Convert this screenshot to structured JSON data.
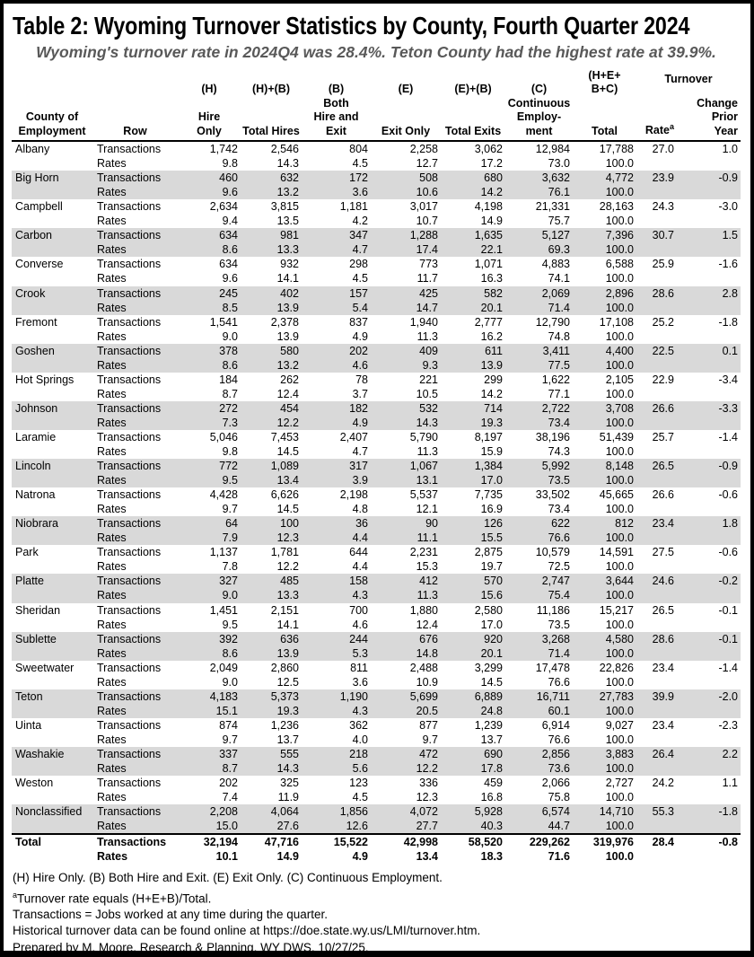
{
  "title": "Table 2: Wyoming Turnover Statistics by County, Fourth Quarter 2024",
  "subtitle": "Wyoming's turnover rate in 2024Q4 was 28.4%. Teton County had the highest rate at 39.9%.",
  "table": {
    "headers": {
      "county": "County of\nEmployment",
      "row": "Row",
      "hire_only": "(H)\n\nHire\nOnly",
      "total_hires": "(H)+(B)\n\n\nTotal Hires",
      "both_hire_exit": "(B)\nBoth\nHire and\nExit",
      "exit_only": "(E)\n\n\nExit Only",
      "total_exits": "(E)+(B)\n\n\nTotal Exits",
      "continuous": "(C)\nContinuous\nEmploy-\nment",
      "total": "(H+E+\nB+C)\n\n\nTotal",
      "turnover": "Turnover",
      "rate": "Rate",
      "rate_sup": "a",
      "change": "Change\nPrior\nYear"
    },
    "row_labels": {
      "transactions": "Transactions",
      "rates": "Rates"
    },
    "counties": [
      {
        "name": "Albany",
        "transactions": [
          "1,742",
          "2,546",
          "804",
          "2,258",
          "3,062",
          "12,984",
          "17,788"
        ],
        "rate": "27.0",
        "change": "1.0",
        "rates": [
          "9.8",
          "14.3",
          "4.5",
          "12.7",
          "17.2",
          "73.0",
          "100.0"
        ]
      },
      {
        "name": "Big Horn",
        "transactions": [
          "460",
          "632",
          "172",
          "508",
          "680",
          "3,632",
          "4,772"
        ],
        "rate": "23.9",
        "change": "-0.9",
        "rates": [
          "9.6",
          "13.2",
          "3.6",
          "10.6",
          "14.2",
          "76.1",
          "100.0"
        ]
      },
      {
        "name": "Campbell",
        "transactions": [
          "2,634",
          "3,815",
          "1,181",
          "3,017",
          "4,198",
          "21,331",
          "28,163"
        ],
        "rate": "24.3",
        "change": "-3.0",
        "rates": [
          "9.4",
          "13.5",
          "4.2",
          "10.7",
          "14.9",
          "75.7",
          "100.0"
        ]
      },
      {
        "name": "Carbon",
        "transactions": [
          "634",
          "981",
          "347",
          "1,288",
          "1,635",
          "5,127",
          "7,396"
        ],
        "rate": "30.7",
        "change": "1.5",
        "rates": [
          "8.6",
          "13.3",
          "4.7",
          "17.4",
          "22.1",
          "69.3",
          "100.0"
        ]
      },
      {
        "name": "Converse",
        "transactions": [
          "634",
          "932",
          "298",
          "773",
          "1,071",
          "4,883",
          "6,588"
        ],
        "rate": "25.9",
        "change": "-1.6",
        "rates": [
          "9.6",
          "14.1",
          "4.5",
          "11.7",
          "16.3",
          "74.1",
          "100.0"
        ]
      },
      {
        "name": "Crook",
        "transactions": [
          "245",
          "402",
          "157",
          "425",
          "582",
          "2,069",
          "2,896"
        ],
        "rate": "28.6",
        "change": "2.8",
        "rates": [
          "8.5",
          "13.9",
          "5.4",
          "14.7",
          "20.1",
          "71.4",
          "100.0"
        ]
      },
      {
        "name": "Fremont",
        "transactions": [
          "1,541",
          "2,378",
          "837",
          "1,940",
          "2,777",
          "12,790",
          "17,108"
        ],
        "rate": "25.2",
        "change": "-1.8",
        "rates": [
          "9.0",
          "13.9",
          "4.9",
          "11.3",
          "16.2",
          "74.8",
          "100.0"
        ]
      },
      {
        "name": "Goshen",
        "transactions": [
          "378",
          "580",
          "202",
          "409",
          "611",
          "3,411",
          "4,400"
        ],
        "rate": "22.5",
        "change": "0.1",
        "rates": [
          "8.6",
          "13.2",
          "4.6",
          "9.3",
          "13.9",
          "77.5",
          "100.0"
        ]
      },
      {
        "name": "Hot Springs",
        "transactions": [
          "184",
          "262",
          "78",
          "221",
          "299",
          "1,622",
          "2,105"
        ],
        "rate": "22.9",
        "change": "-3.4",
        "rates": [
          "8.7",
          "12.4",
          "3.7",
          "10.5",
          "14.2",
          "77.1",
          "100.0"
        ]
      },
      {
        "name": "Johnson",
        "transactions": [
          "272",
          "454",
          "182",
          "532",
          "714",
          "2,722",
          "3,708"
        ],
        "rate": "26.6",
        "change": "-3.3",
        "rates": [
          "7.3",
          "12.2",
          "4.9",
          "14.3",
          "19.3",
          "73.4",
          "100.0"
        ]
      },
      {
        "name": "Laramie",
        "transactions": [
          "5,046",
          "7,453",
          "2,407",
          "5,790",
          "8,197",
          "38,196",
          "51,439"
        ],
        "rate": "25.7",
        "change": "-1.4",
        "rates": [
          "9.8",
          "14.5",
          "4.7",
          "11.3",
          "15.9",
          "74.3",
          "100.0"
        ]
      },
      {
        "name": "Lincoln",
        "transactions": [
          "772",
          "1,089",
          "317",
          "1,067",
          "1,384",
          "5,992",
          "8,148"
        ],
        "rate": "26.5",
        "change": "-0.9",
        "rates": [
          "9.5",
          "13.4",
          "3.9",
          "13.1",
          "17.0",
          "73.5",
          "100.0"
        ]
      },
      {
        "name": "Natrona",
        "transactions": [
          "4,428",
          "6,626",
          "2,198",
          "5,537",
          "7,735",
          "33,502",
          "45,665"
        ],
        "rate": "26.6",
        "change": "-0.6",
        "rates": [
          "9.7",
          "14.5",
          "4.8",
          "12.1",
          "16.9",
          "73.4",
          "100.0"
        ]
      },
      {
        "name": "Niobrara",
        "transactions": [
          "64",
          "100",
          "36",
          "90",
          "126",
          "622",
          "812"
        ],
        "rate": "23.4",
        "change": "1.8",
        "rates": [
          "7.9",
          "12.3",
          "4.4",
          "11.1",
          "15.5",
          "76.6",
          "100.0"
        ]
      },
      {
        "name": "Park",
        "transactions": [
          "1,137",
          "1,781",
          "644",
          "2,231",
          "2,875",
          "10,579",
          "14,591"
        ],
        "rate": "27.5",
        "change": "-0.6",
        "rates": [
          "7.8",
          "12.2",
          "4.4",
          "15.3",
          "19.7",
          "72.5",
          "100.0"
        ]
      },
      {
        "name": "Platte",
        "transactions": [
          "327",
          "485",
          "158",
          "412",
          "570",
          "2,747",
          "3,644"
        ],
        "rate": "24.6",
        "change": "-0.2",
        "rates": [
          "9.0",
          "13.3",
          "4.3",
          "11.3",
          "15.6",
          "75.4",
          "100.0"
        ]
      },
      {
        "name": "Sheridan",
        "transactions": [
          "1,451",
          "2,151",
          "700",
          "1,880",
          "2,580",
          "11,186",
          "15,217"
        ],
        "rate": "26.5",
        "change": "-0.1",
        "rates": [
          "9.5",
          "14.1",
          "4.6",
          "12.4",
          "17.0",
          "73.5",
          "100.0"
        ]
      },
      {
        "name": "Sublette",
        "transactions": [
          "392",
          "636",
          "244",
          "676",
          "920",
          "3,268",
          "4,580"
        ],
        "rate": "28.6",
        "change": "-0.1",
        "rates": [
          "8.6",
          "13.9",
          "5.3",
          "14.8",
          "20.1",
          "71.4",
          "100.0"
        ]
      },
      {
        "name": "Sweetwater",
        "transactions": [
          "2,049",
          "2,860",
          "811",
          "2,488",
          "3,299",
          "17,478",
          "22,826"
        ],
        "rate": "23.4",
        "change": "-1.4",
        "rates": [
          "9.0",
          "12.5",
          "3.6",
          "10.9",
          "14.5",
          "76.6",
          "100.0"
        ]
      },
      {
        "name": "Teton",
        "transactions": [
          "4,183",
          "5,373",
          "1,190",
          "5,699",
          "6,889",
          "16,711",
          "27,783"
        ],
        "rate": "39.9",
        "change": "-2.0",
        "rates": [
          "15.1",
          "19.3",
          "4.3",
          "20.5",
          "24.8",
          "60.1",
          "100.0"
        ]
      },
      {
        "name": "Uinta",
        "transactions": [
          "874",
          "1,236",
          "362",
          "877",
          "1,239",
          "6,914",
          "9,027"
        ],
        "rate": "23.4",
        "change": "-2.3",
        "rates": [
          "9.7",
          "13.7",
          "4.0",
          "9.7",
          "13.7",
          "76.6",
          "100.0"
        ]
      },
      {
        "name": "Washakie",
        "transactions": [
          "337",
          "555",
          "218",
          "472",
          "690",
          "2,856",
          "3,883"
        ],
        "rate": "26.4",
        "change": "2.2",
        "rates": [
          "8.7",
          "14.3",
          "5.6",
          "12.2",
          "17.8",
          "73.6",
          "100.0"
        ]
      },
      {
        "name": "Weston",
        "transactions": [
          "202",
          "325",
          "123",
          "336",
          "459",
          "2,066",
          "2,727"
        ],
        "rate": "24.2",
        "change": "1.1",
        "rates": [
          "7.4",
          "11.9",
          "4.5",
          "12.3",
          "16.8",
          "75.8",
          "100.0"
        ]
      },
      {
        "name": "Nonclassified",
        "transactions": [
          "2,208",
          "4,064",
          "1,856",
          "4,072",
          "5,928",
          "6,574",
          "14,710"
        ],
        "rate": "55.3",
        "change": "-1.8",
        "rates": [
          "15.0",
          "27.6",
          "12.6",
          "27.7",
          "40.3",
          "44.7",
          "100.0"
        ]
      }
    ],
    "total_row": {
      "name": "Total",
      "transactions": [
        "32,194",
        "47,716",
        "15,522",
        "42,998",
        "58,520",
        "229,262",
        "319,976"
      ],
      "rate": "28.4",
      "change": "-0.8",
      "rates": [
        "10.1",
        "14.9",
        "4.9",
        "13.4",
        "18.3",
        "71.6",
        "100.0"
      ]
    }
  },
  "footnotes": [
    {
      "text": "(H) Hire Only. (B) Both Hire and Exit. (E) Exit Only. (C) Continuous Employment."
    },
    {
      "sup": "a",
      "text": "Turnover rate equals (H+E+B)/Total."
    },
    {
      "text": "Transactions = Jobs worked at any time during the quarter."
    },
    {
      "text": "Historical turnover data can be found online at https://doe.state.wy.us/LMI/turnover.htm."
    },
    {
      "text": "Prepared by M. Moore, Research & Planning, WY DWS, 10/27/25."
    }
  ],
  "colors": {
    "stripe": "#d9d9d9",
    "subtitle": "#595959",
    "frame": "#000000"
  }
}
